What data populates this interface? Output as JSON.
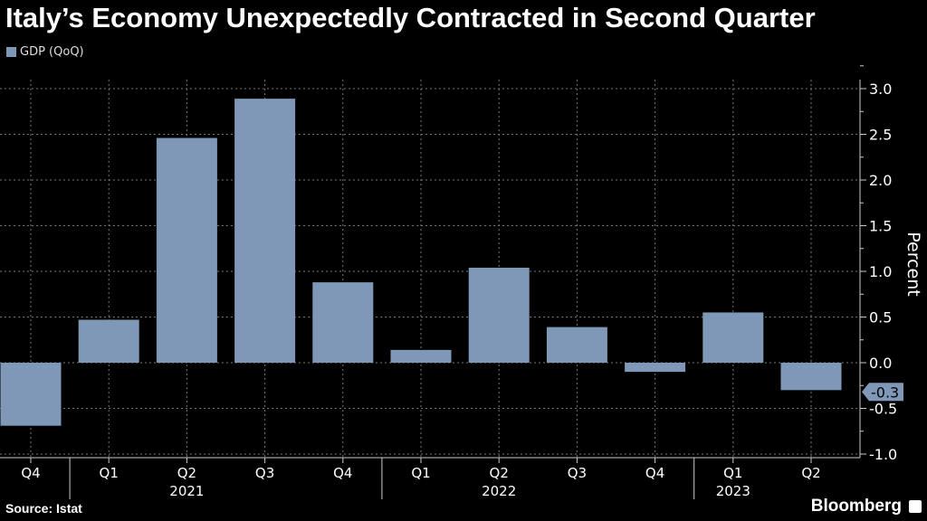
{
  "title": "Italy’s Economy Unexpectedly Contracted in Second Quarter",
  "source": "Source: Istat",
  "brand": "Bloomberg",
  "colors": {
    "bar": "#7f98b8",
    "background": "#000000",
    "grid": "#666666"
  },
  "chart_data": {
    "type": "bar",
    "title": "Italy’s Economy Unexpectedly Contracted in Second Quarter",
    "legend": [
      "GDP (QoQ)"
    ],
    "legend_position": "top-left",
    "ylabel": "Percent",
    "xlabel": "",
    "ylim": [
      -1.05,
      3.3
    ],
    "yticks": [
      "3.0",
      "2.5",
      "2.0",
      "1.5",
      "1.0",
      "0.5",
      "0.0",
      "-0.5",
      "-1.0"
    ],
    "ytick_values": [
      3.0,
      2.5,
      2.0,
      1.5,
      1.0,
      0.5,
      0.0,
      -0.5,
      -1.0
    ],
    "categories": [
      "Q4",
      "Q1",
      "Q2",
      "Q3",
      "Q4",
      "Q1",
      "Q2",
      "Q3",
      "Q4",
      "Q1",
      "Q2"
    ],
    "years": [
      {
        "label": "2021",
        "index": 2
      },
      {
        "label": "2022",
        "index": 6
      },
      {
        "label": "2023",
        "index": 9
      }
    ],
    "year_breaks": [
      1,
      5,
      9
    ],
    "series": [
      {
        "name": "GDP (QoQ)",
        "values": [
          -0.69,
          0.47,
          2.46,
          2.89,
          0.88,
          0.14,
          1.04,
          0.39,
          -0.1,
          0.55,
          -0.3
        ]
      }
    ],
    "last_value_label": "-0.3",
    "grid": true
  }
}
